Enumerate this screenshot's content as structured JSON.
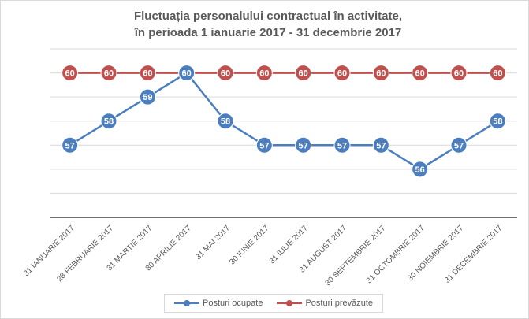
{
  "chart_data": {
    "type": "line",
    "title_line1": "Fluctuația personalului contractual în activitate,",
    "title_line2": "în perioada 1 ianuarie 2017 - 31 decembrie 2017",
    "categories": [
      "31 IANUARIE 2017",
      "28 FEBRUARIE 2017",
      "31 MARTIE 2017",
      "30 APRILIE 2017",
      "31 MAI 2017",
      "30 IUNIE 2017",
      "31 IULIE 2017",
      "31 AUGUST 2017",
      "30 SEPTEMBRIE 2017",
      "31 OCTOMBRIE 2017",
      "30 NOIEMBRIE 2017",
      "31 DECEMBRIE 2017"
    ],
    "series": [
      {
        "name": "Posturi ocupate",
        "values": [
          57,
          58,
          59,
          60,
          58,
          57,
          57,
          57,
          57,
          56,
          57,
          58
        ],
        "color": "#4a7ebf"
      },
      {
        "name": "Posturi prevăzute",
        "values": [
          60,
          60,
          60,
          60,
          60,
          60,
          60,
          60,
          60,
          60,
          60,
          60
        ],
        "color": "#c0504d"
      }
    ],
    "ylim": [
      54,
      61
    ],
    "grid": "horizontal",
    "legend": "bottom"
  }
}
